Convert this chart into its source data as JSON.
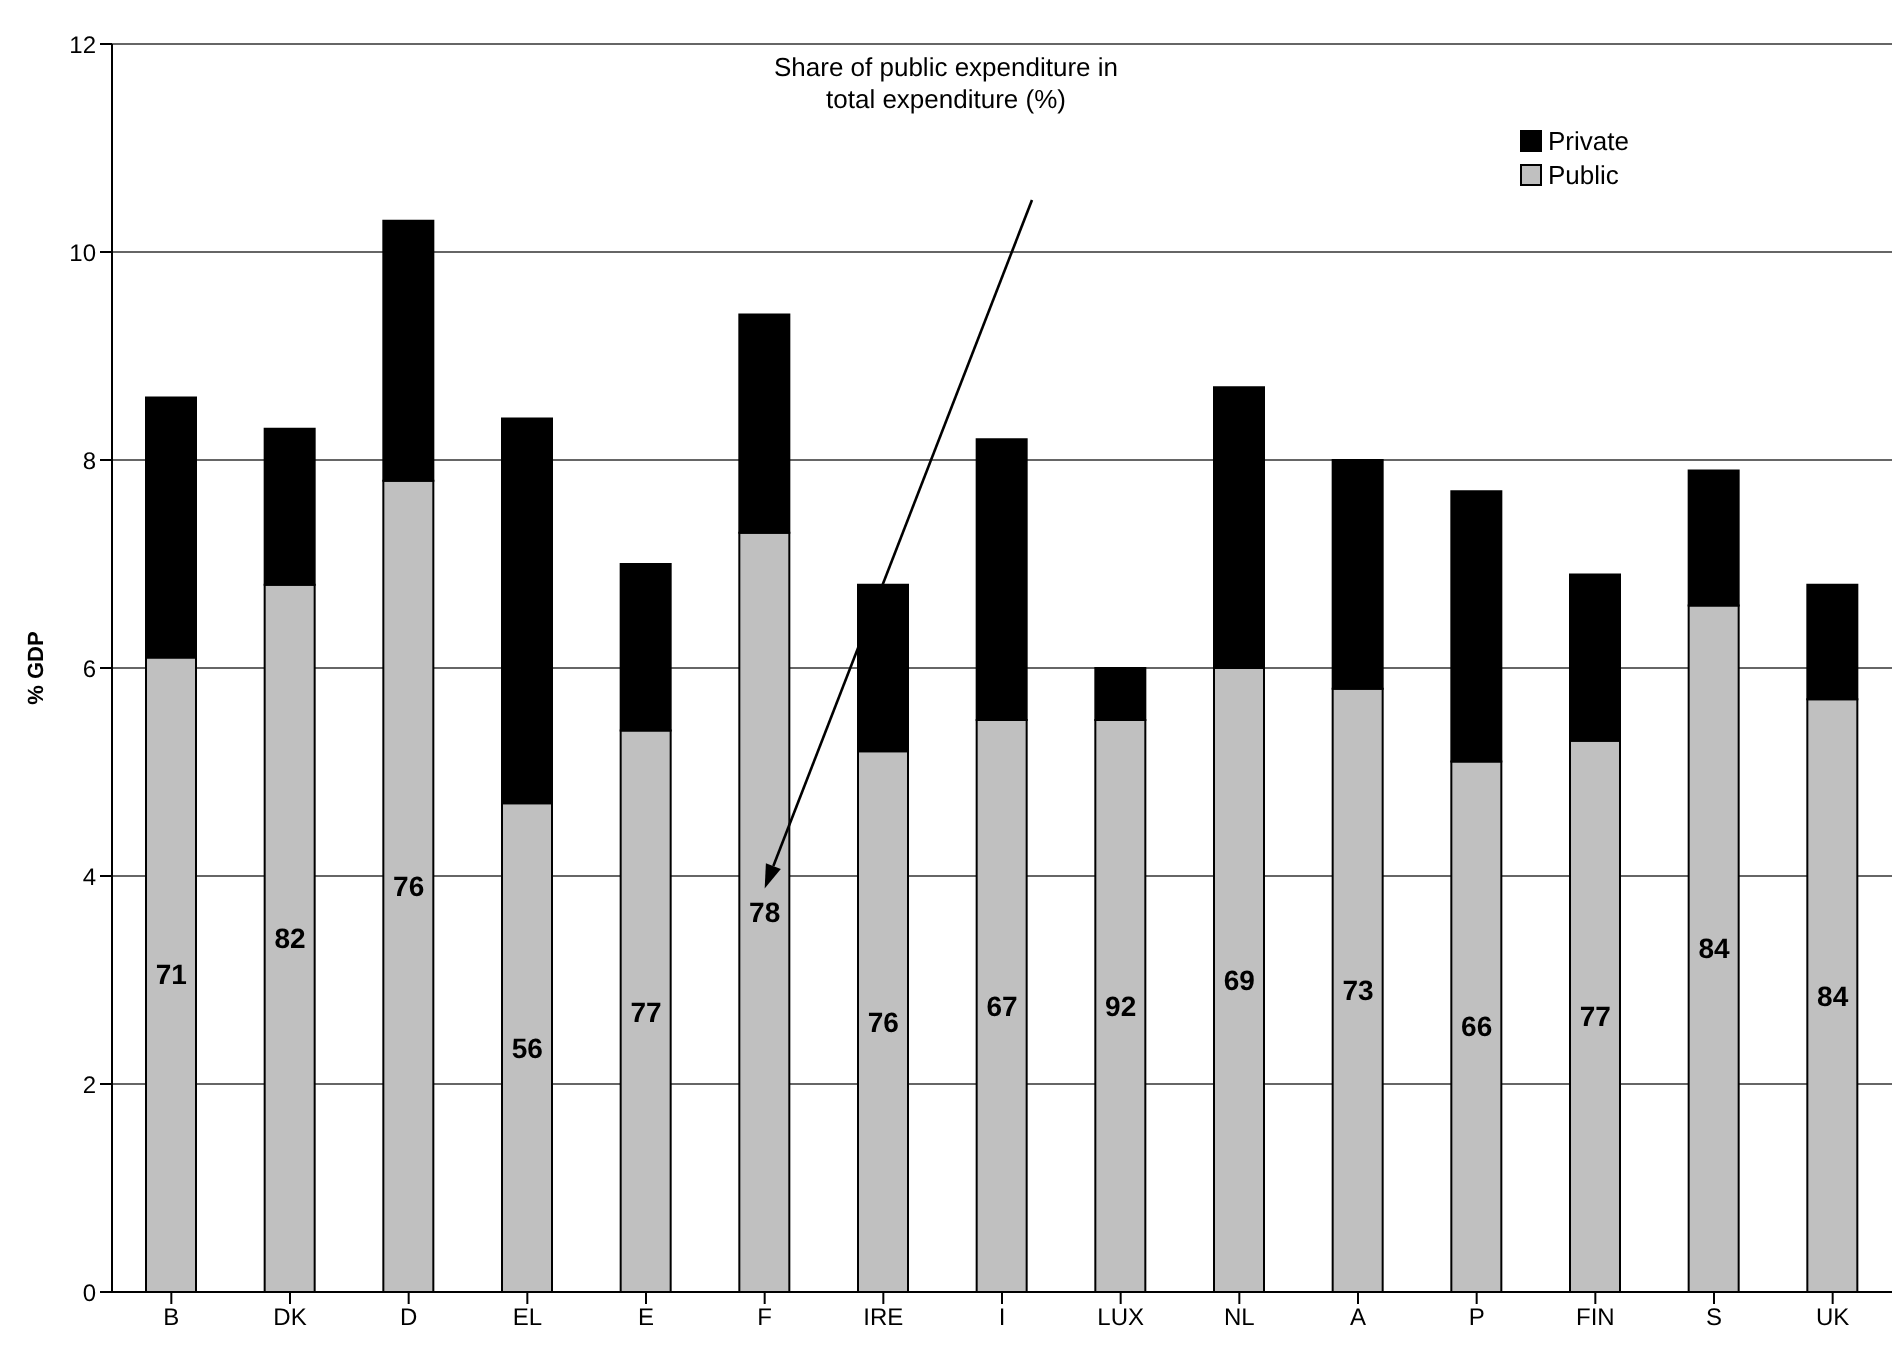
{
  "chart_data": {
    "type": "bar",
    "stacked": true,
    "ylabel": "% GDP",
    "categories": [
      "B",
      "DK",
      "D",
      "EL",
      "E",
      "F",
      "IRE",
      "I",
      "LUX",
      "NL",
      "A",
      "P",
      "FIN",
      "S",
      "UK"
    ],
    "series": [
      {
        "name": "Public",
        "color": "#c0c0c0",
        "values": [
          6.1,
          6.8,
          7.8,
          4.7,
          5.4,
          7.3,
          5.2,
          5.5,
          5.5,
          6.0,
          5.8,
          5.1,
          5.3,
          6.6,
          5.7
        ]
      },
      {
        "name": "Private",
        "color": "#000000",
        "values": [
          2.5,
          1.5,
          2.5,
          3.7,
          1.6,
          2.1,
          1.6,
          2.7,
          0.5,
          2.7,
          2.2,
          2.6,
          1.6,
          1.3,
          1.1
        ]
      }
    ],
    "ylim": [
      0,
      12
    ],
    "yticks": [
      0,
      2,
      4,
      6,
      8,
      10,
      12
    ],
    "grid": "y",
    "legend": "top right",
    "annotations": [
      "Share of public expenditure in total expenditure (%)",
      "71",
      "82",
      "76",
      "56",
      "77",
      "78",
      "76",
      "67",
      "92",
      "69",
      "73",
      "66",
      "77",
      "84",
      "84"
    ]
  }
}
